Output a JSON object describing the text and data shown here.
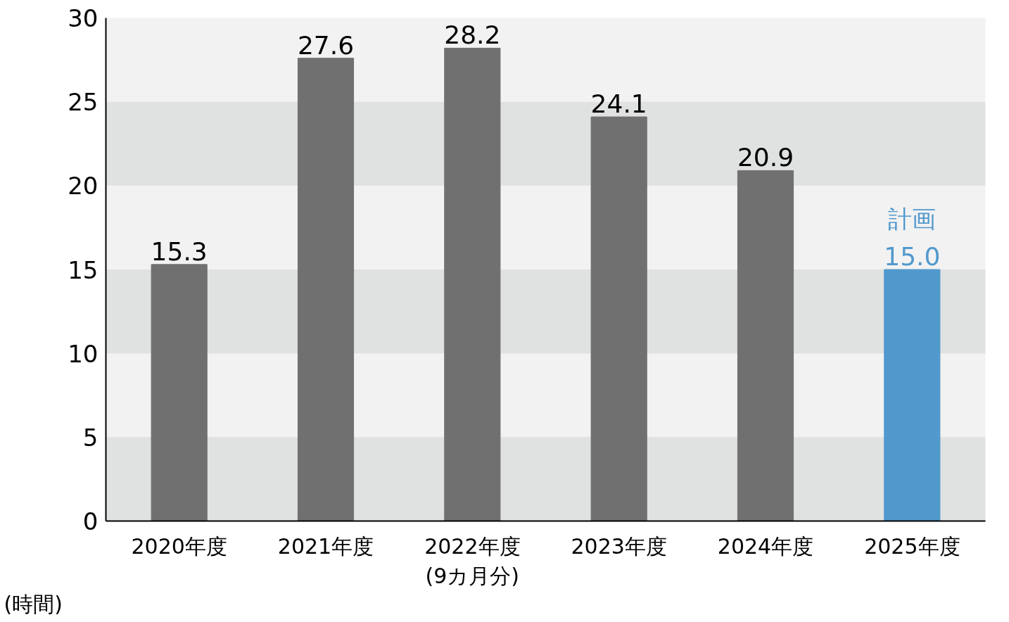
{
  "chart_data": {
    "type": "bar",
    "categories": [
      "2020年度",
      "2021年度",
      "2022年度\n(9カ月分)",
      "2023年度",
      "2024年度",
      "2025年度"
    ],
    "values": [
      15.3,
      27.6,
      28.2,
      24.1,
      20.9,
      15.0
    ],
    "colors": [
      "#707070",
      "#707070",
      "#707070",
      "#707070",
      "#707070",
      "#5199cd"
    ],
    "ylabel": "(時間)",
    "ylim": [
      0,
      30
    ],
    "yticks": [
      0,
      5,
      10,
      15,
      20,
      25,
      30
    ],
    "bands": [
      {
        "axis": "y",
        "from": 0,
        "to": 5,
        "color": "#e0e1e1"
      },
      {
        "axis": "y",
        "from": 10,
        "to": 15,
        "color": "#e0e1e1"
      },
      {
        "axis": "y",
        "from": 20,
        "to": 25,
        "color": "#e0e1e1"
      }
    ],
    "annotations": [
      {
        "text": "計画",
        "x": "2025年度",
        "y": 15.0
      }
    ],
    "value_labels": [
      "15.3",
      "27.6",
      "28.2",
      "24.1",
      "20.9",
      "15.0"
    ],
    "grid": false
  }
}
